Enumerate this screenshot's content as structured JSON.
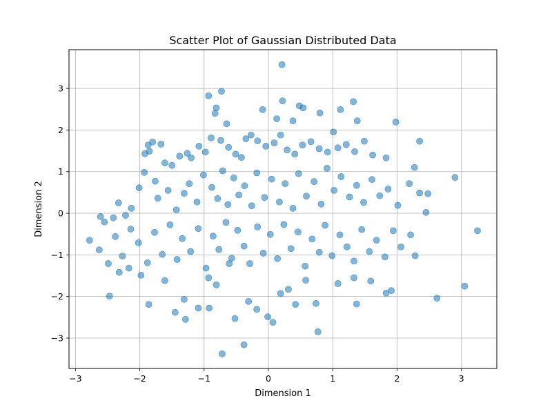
{
  "chart_data": {
    "type": "scatter",
    "title": "Scatter Plot of Gaussian Distributed Data",
    "xlabel": "Dimension 1",
    "ylabel": "Dimension 2",
    "xlim": [
      -3.1,
      3.55
    ],
    "ylim": [
      -3.73,
      3.93
    ],
    "xticks": [
      -3,
      -2,
      -1,
      0,
      1,
      2,
      3
    ],
    "yticks": [
      -3,
      -2,
      -1,
      0,
      1,
      2,
      3
    ],
    "grid": true,
    "legend": "none",
    "marker_color": "#1f77b4",
    "marker_alpha": 0.55,
    "series": [
      {
        "points": [
          [
            0.21,
            3.57
          ],
          [
            -0.73,
            2.93
          ],
          [
            -0.93,
            2.82
          ],
          [
            1.32,
            2.68
          ],
          [
            0.22,
            2.7
          ],
          [
            -0.81,
            2.53
          ],
          [
            0.48,
            2.58
          ],
          [
            0.54,
            2.53
          ],
          [
            1.12,
            2.49
          ],
          [
            -0.09,
            2.49
          ],
          [
            -0.83,
            2.4
          ],
          [
            0.8,
            2.41
          ],
          [
            1.38,
            2.22
          ],
          [
            1.98,
            2.19
          ],
          [
            0.38,
            2.22
          ],
          [
            -0.65,
            2.15
          ],
          [
            0.13,
            2.27
          ],
          [
            -1.87,
            1.64
          ],
          [
            -1.8,
            1.71
          ],
          [
            -1.85,
            1.49
          ],
          [
            -1.92,
            1.43
          ],
          [
            -1.67,
            1.66
          ],
          [
            -1.61,
            1.21
          ],
          [
            -1.5,
            1.15
          ],
          [
            -1.38,
            1.37
          ],
          [
            -1.26,
            1.44
          ],
          [
            -1.2,
            1.33
          ],
          [
            -1.08,
            1.61
          ],
          [
            -0.98,
            1.47
          ],
          [
            -0.89,
            1.81
          ],
          [
            -0.74,
            1.75
          ],
          [
            -0.62,
            1.58
          ],
          [
            -0.51,
            1.42
          ],
          [
            -0.42,
            1.34
          ],
          [
            -0.35,
            1.79
          ],
          [
            -0.27,
            1.88
          ],
          [
            -0.17,
            1.74
          ],
          [
            -0.04,
            1.61
          ],
          [
            0.09,
            1.69
          ],
          [
            0.19,
            1.88
          ],
          [
            0.29,
            1.52
          ],
          [
            0.41,
            1.42
          ],
          [
            0.53,
            1.64
          ],
          [
            0.66,
            1.72
          ],
          [
            0.79,
            1.55
          ],
          [
            0.92,
            1.47
          ],
          [
            1.01,
            1.95
          ],
          [
            1.08,
            1.57
          ],
          [
            1.21,
            1.65
          ],
          [
            1.34,
            1.48
          ],
          [
            1.49,
            1.73
          ],
          [
            1.62,
            1.4
          ],
          [
            1.83,
            1.33
          ],
          [
            2.35,
            1.73
          ],
          [
            -2.61,
            -0.08
          ],
          [
            -2.55,
            -0.21
          ],
          [
            -2.41,
            -0.11
          ],
          [
            -2.33,
            0.25
          ],
          [
            -2.22,
            -0.05
          ],
          [
            -2.13,
            0.12
          ],
          [
            -2.01,
            0.61
          ],
          [
            -1.93,
            0.98
          ],
          [
            -1.76,
            0.77
          ],
          [
            -1.72,
            0.36
          ],
          [
            -1.56,
            0.55
          ],
          [
            -1.43,
            0.08
          ],
          [
            -1.31,
            0.48
          ],
          [
            -1.23,
            0.71
          ],
          [
            -1.11,
            0.27
          ],
          [
            -1.01,
            0.92
          ],
          [
            -0.88,
            0.62
          ],
          [
            -0.79,
            0.35
          ],
          [
            -0.71,
            1.02
          ],
          [
            -0.63,
            0.21
          ],
          [
            -0.54,
            0.85
          ],
          [
            -0.46,
            0.44
          ],
          [
            -0.37,
            0.66
          ],
          [
            -0.26,
            0.18
          ],
          [
            -0.18,
            0.97
          ],
          [
            -0.06,
            0.38
          ],
          [
            0.05,
            0.82
          ],
          [
            0.17,
            0.27
          ],
          [
            0.26,
            0.71
          ],
          [
            0.38,
            0.12
          ],
          [
            0.47,
            0.95
          ],
          [
            0.59,
            0.41
          ],
          [
            0.71,
            0.76
          ],
          [
            0.82,
            0.22
          ],
          [
            0.91,
            1.08
          ],
          [
            1.02,
            0.55
          ],
          [
            1.13,
            0.88
          ],
          [
            1.26,
            0.39
          ],
          [
            1.37,
            0.67
          ],
          [
            1.48,
            0.26
          ],
          [
            1.61,
            0.81
          ],
          [
            1.73,
            0.42
          ],
          [
            1.86,
            0.58
          ],
          [
            2.01,
            0.19
          ],
          [
            2.19,
            0.71
          ],
          [
            2.27,
            1.1
          ],
          [
            2.35,
            0.49
          ],
          [
            2.48,
            0.47
          ],
          [
            2.9,
            0.86
          ],
          [
            -2.78,
            -0.65
          ],
          [
            -2.63,
            -0.88
          ],
          [
            -2.49,
            -1.21
          ],
          [
            -2.38,
            -0.56
          ],
          [
            -2.27,
            -1.03
          ],
          [
            -2.14,
            -0.38
          ],
          [
            -2.02,
            -0.71
          ],
          [
            -1.88,
            -1.19
          ],
          [
            -1.77,
            -0.46
          ],
          [
            -1.65,
            -0.99
          ],
          [
            -1.53,
            -0.28
          ],
          [
            -1.42,
            -1.11
          ],
          [
            -1.34,
            -0.61
          ],
          [
            -1.21,
            -0.92
          ],
          [
            -1.09,
            -0.37
          ],
          [
            -0.97,
            -1.32
          ],
          [
            -0.86,
            -0.55
          ],
          [
            -0.77,
            -0.87
          ],
          [
            -0.66,
            -0.22
          ],
          [
            -0.57,
            -1.08
          ],
          [
            -0.48,
            -0.41
          ],
          [
            -0.38,
            -0.79
          ],
          [
            -0.29,
            -1.21
          ],
          [
            -0.17,
            -0.33
          ],
          [
            -0.08,
            -0.96
          ],
          [
            0.03,
            -0.51
          ],
          [
            0.14,
            -1.09
          ],
          [
            0.24,
            -0.27
          ],
          [
            0.35,
            -0.85
          ],
          [
            0.46,
            -0.45
          ],
          [
            0.57,
            -1.27
          ],
          [
            0.68,
            -0.62
          ],
          [
            0.79,
            -0.94
          ],
          [
            0.88,
            -0.29
          ],
          [
            0.99,
            -1.02
          ],
          [
            1.11,
            -0.52
          ],
          [
            1.22,
            -0.81
          ],
          [
            1.33,
            -1.15
          ],
          [
            1.45,
            -0.39
          ],
          [
            1.57,
            -0.92
          ],
          [
            1.68,
            -0.65
          ],
          [
            1.81,
            -1.05
          ],
          [
            1.94,
            -0.42
          ],
          [
            2.06,
            -0.81
          ],
          [
            2.21,
            -0.52
          ],
          [
            2.28,
            -1.02
          ],
          [
            2.45,
            0.02
          ],
          [
            -2.47,
            -1.99
          ],
          [
            -2.32,
            -1.42
          ],
          [
            -2.17,
            -1.32
          ],
          [
            -1.98,
            -1.49
          ],
          [
            -1.86,
            -2.19
          ],
          [
            -1.61,
            -1.62
          ],
          [
            -1.45,
            -2.38
          ],
          [
            -1.31,
            -2.07
          ],
          [
            -1.29,
            -2.55
          ],
          [
            -1.09,
            -2.28
          ],
          [
            -0.93,
            -1.55
          ],
          [
            -0.92,
            -2.28
          ],
          [
            -0.81,
            -1.72
          ],
          [
            -0.72,
            -3.38
          ],
          [
            -0.61,
            -1.21
          ],
          [
            -0.52,
            -2.53
          ],
          [
            -0.38,
            -3.16
          ],
          [
            -0.31,
            -2.12
          ],
          [
            -0.18,
            -2.31
          ],
          [
            -0.01,
            -2.49
          ],
          [
            0.07,
            -2.62
          ],
          [
            0.19,
            -1.93
          ],
          [
            0.31,
            -1.83
          ],
          [
            0.42,
            -2.19
          ],
          [
            0.58,
            -1.61
          ],
          [
            0.74,
            -2.17
          ],
          [
            0.77,
            -2.85
          ],
          [
            1.08,
            -1.69
          ],
          [
            1.33,
            -1.55
          ],
          [
            1.37,
            -2.18
          ],
          [
            1.59,
            -1.63
          ],
          [
            1.83,
            -1.92
          ],
          [
            1.91,
            -1.86
          ],
          [
            2.62,
            -2.04
          ],
          [
            3.05,
            -1.75
          ],
          [
            3.25,
            -0.42
          ]
        ]
      }
    ]
  }
}
